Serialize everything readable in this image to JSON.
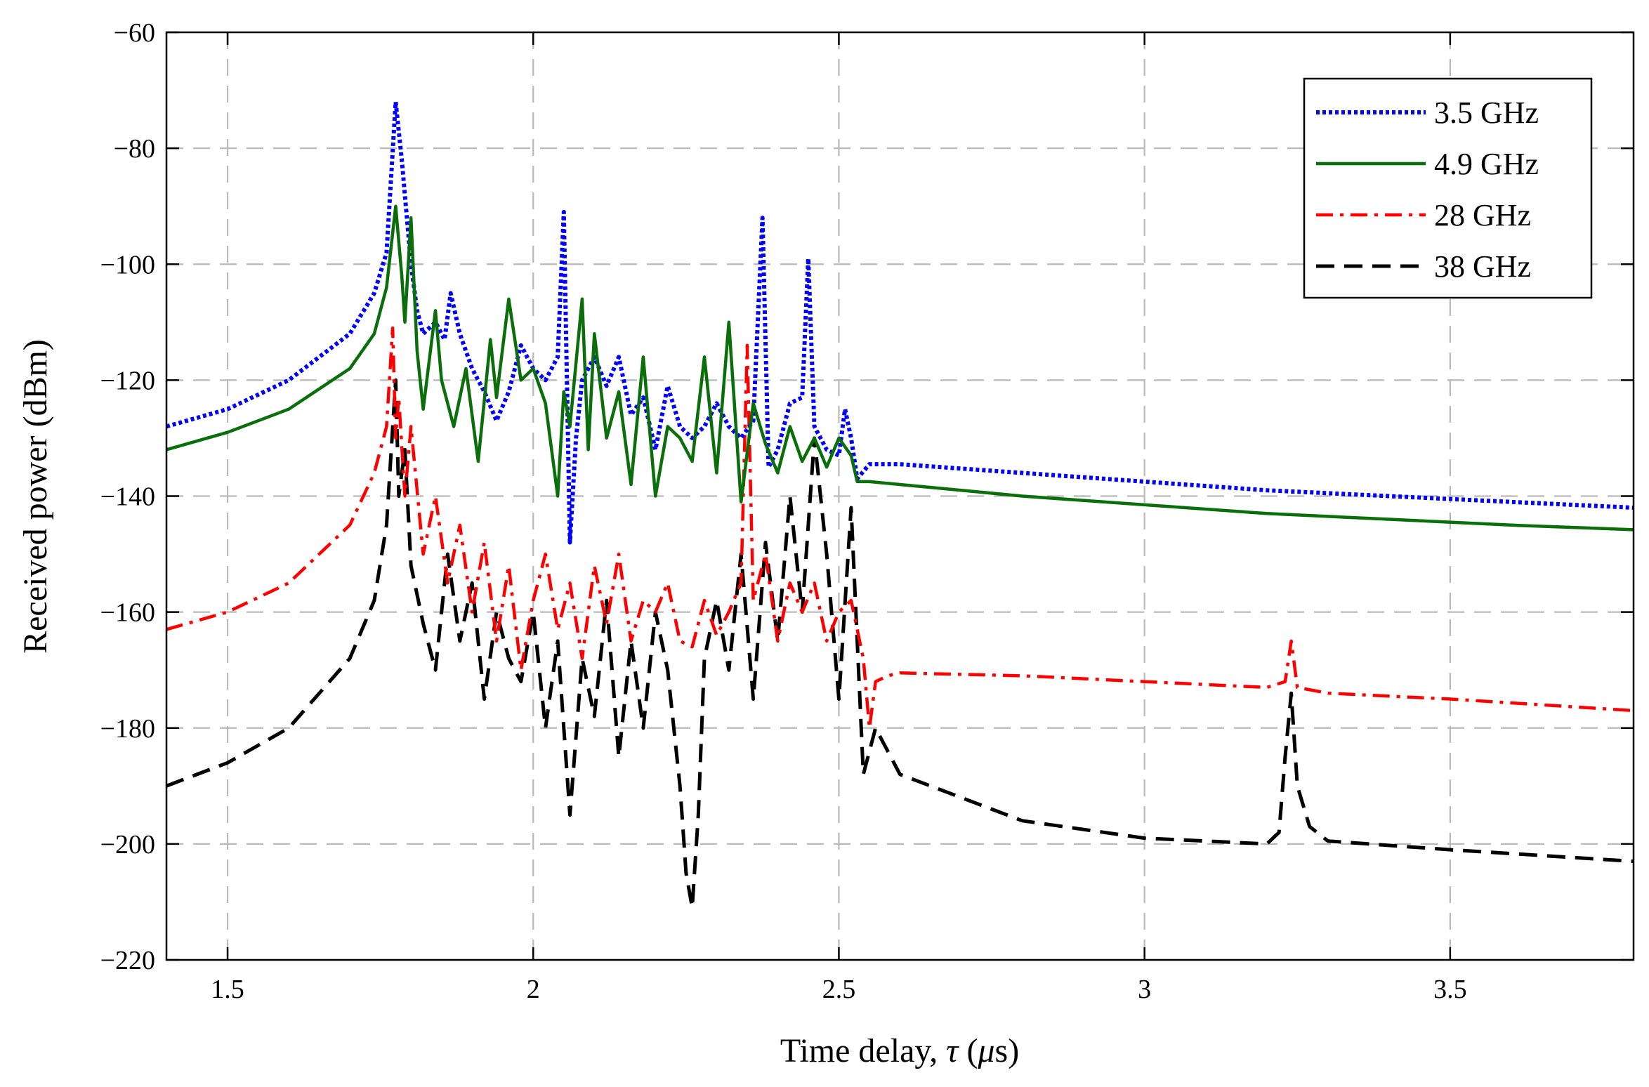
{
  "chart_data": {
    "type": "line",
    "title": "",
    "xlabel": "Time delay, ",
    "xlabel_symbol": "τ",
    "xlabel_unit_open": " (",
    "xlabel_unit_symbol": "μ",
    "xlabel_unit_close": "s)",
    "ylabel": "Received power (dBm)",
    "xlim": [
      1.4,
      3.8
    ],
    "ylim": [
      -220,
      -60
    ],
    "xticks": [
      1.5,
      2,
      2.5,
      3,
      3.5
    ],
    "xtick_labels": [
      "1.5",
      "2",
      "2.5",
      "3",
      "3.5"
    ],
    "yticks": [
      -220,
      -200,
      -180,
      -160,
      -140,
      -120,
      -100,
      -80,
      -60
    ],
    "ytick_labels": [
      "−220",
      "−200",
      "−180",
      "−160",
      "−140",
      "−120",
      "−100",
      "−80",
      "−60"
    ],
    "grid": true,
    "legend_position": "top-right",
    "series": [
      {
        "name": "3.5 GHz",
        "color": "#0000ff",
        "style": "dotted",
        "x": [
          1.4,
          1.5,
          1.6,
          1.7,
          1.74,
          1.76,
          1.775,
          1.785,
          1.8,
          1.81,
          1.82,
          1.84,
          1.855,
          1.865,
          1.88,
          1.9,
          1.92,
          1.94,
          1.96,
          1.98,
          2.0,
          2.02,
          2.04,
          2.05,
          2.06,
          2.07,
          2.08,
          2.1,
          2.12,
          2.14,
          2.16,
          2.18,
          2.2,
          2.22,
          2.24,
          2.26,
          2.28,
          2.3,
          2.32,
          2.34,
          2.36,
          2.375,
          2.385,
          2.4,
          2.42,
          2.44,
          2.45,
          2.46,
          2.48,
          2.5,
          2.51,
          2.52,
          2.53,
          2.55,
          2.6,
          2.8,
          3.0,
          3.2,
          3.4,
          3.6,
          3.8
        ],
        "y": [
          -128,
          -125,
          -120,
          -112,
          -105,
          -98,
          -72,
          -82,
          -100,
          -108,
          -112,
          -110,
          -113,
          -105,
          -112,
          -118,
          -122,
          -127,
          -122,
          -114,
          -118,
          -120,
          -116,
          -91,
          -148,
          -130,
          -120,
          -116,
          -121,
          -116,
          -126,
          -123,
          -132,
          -121,
          -128,
          -130,
          -128,
          -124,
          -128,
          -130,
          -127,
          -92,
          -135,
          -132,
          -124,
          -123,
          -99,
          -128,
          -132,
          -133,
          -125,
          -130,
          -137,
          -134.5,
          -134.5,
          -136,
          -137.5,
          -139,
          -140,
          -141,
          -142
        ]
      },
      {
        "name": "4.9 GHz",
        "color": "#0a6e0a",
        "style": "solid",
        "x": [
          1.4,
          1.5,
          1.6,
          1.7,
          1.74,
          1.76,
          1.775,
          1.785,
          1.79,
          1.8,
          1.81,
          1.82,
          1.84,
          1.85,
          1.87,
          1.89,
          1.91,
          1.93,
          1.94,
          1.96,
          1.97,
          1.98,
          2.0,
          2.02,
          2.04,
          2.05,
          2.06,
          2.08,
          2.09,
          2.1,
          2.12,
          2.14,
          2.16,
          2.18,
          2.2,
          2.22,
          2.24,
          2.26,
          2.28,
          2.3,
          2.32,
          2.34,
          2.36,
          2.38,
          2.4,
          2.42,
          2.44,
          2.46,
          2.48,
          2.5,
          2.52,
          2.53,
          2.55,
          2.6,
          2.8,
          3.0,
          3.2,
          3.4,
          3.6,
          3.8
        ],
        "y": [
          -132,
          -129,
          -125,
          -118,
          -112,
          -104,
          -90,
          -102,
          -110,
          -92,
          -115,
          -125,
          -108,
          -120,
          -128,
          -118,
          -134,
          -113,
          -123,
          -106,
          -113,
          -120,
          -118,
          -124,
          -140,
          -122,
          -128,
          -106,
          -132,
          -112,
          -130,
          -122,
          -138,
          -116,
          -140,
          -128,
          -130,
          -134,
          -116,
          -136,
          -110,
          -141,
          -124,
          -131,
          -136,
          -128,
          -134,
          -130,
          -135,
          -130,
          -133,
          -137.5,
          -137.5,
          -138,
          -140,
          -141.5,
          -143,
          -144,
          -145,
          -145.8
        ]
      },
      {
        "name": "28 GHz",
        "color": "#ff0000",
        "style": "dashdot",
        "x": [
          1.4,
          1.5,
          1.6,
          1.7,
          1.74,
          1.76,
          1.77,
          1.775,
          1.78,
          1.79,
          1.8,
          1.82,
          1.84,
          1.86,
          1.88,
          1.9,
          1.92,
          1.94,
          1.96,
          1.98,
          2.0,
          2.02,
          2.04,
          2.06,
          2.08,
          2.1,
          2.12,
          2.14,
          2.16,
          2.18,
          2.2,
          2.22,
          2.24,
          2.26,
          2.28,
          2.3,
          2.32,
          2.34,
          2.35,
          2.36,
          2.38,
          2.4,
          2.42,
          2.44,
          2.46,
          2.48,
          2.5,
          2.52,
          2.54,
          2.55,
          2.56,
          2.58,
          2.6,
          2.8,
          3.0,
          3.2,
          3.23,
          3.24,
          3.25,
          3.3,
          3.5,
          3.8
        ],
        "y": [
          -163,
          -160,
          -155,
          -145,
          -136,
          -128,
          -111,
          -130,
          -123,
          -140,
          -128,
          -150,
          -140,
          -155,
          -145,
          -160,
          -148,
          -165,
          -152,
          -170,
          -158,
          -150,
          -163,
          -155,
          -168,
          -152,
          -162,
          -150,
          -165,
          -158,
          -160,
          -155,
          -165,
          -166,
          -158,
          -164,
          -160,
          -155,
          -114,
          -158,
          -150,
          -165,
          -155,
          -160,
          -155,
          -165,
          -160,
          -158,
          -168,
          -180,
          -172,
          -171,
          -170.5,
          -171,
          -172,
          -173,
          -172,
          -165,
          -173,
          -174,
          -175,
          -177
        ]
      },
      {
        "name": "38 GHz",
        "color": "#000000",
        "style": "dashed",
        "x": [
          1.4,
          1.5,
          1.6,
          1.7,
          1.74,
          1.76,
          1.775,
          1.78,
          1.79,
          1.8,
          1.82,
          1.84,
          1.86,
          1.88,
          1.9,
          1.92,
          1.94,
          1.96,
          1.98,
          2.0,
          2.02,
          2.04,
          2.06,
          2.08,
          2.1,
          2.12,
          2.14,
          2.16,
          2.18,
          2.2,
          2.22,
          2.24,
          2.25,
          2.26,
          2.27,
          2.28,
          2.3,
          2.32,
          2.34,
          2.36,
          2.38,
          2.4,
          2.42,
          2.44,
          2.46,
          2.48,
          2.5,
          2.52,
          2.54,
          2.56,
          2.6,
          2.8,
          3.0,
          3.2,
          3.22,
          3.23,
          3.24,
          3.25,
          3.27,
          3.3,
          3.5,
          3.8
        ],
        "y": [
          -190,
          -186,
          -180,
          -168,
          -158,
          -145,
          -120,
          -140,
          -132,
          -152,
          -162,
          -170,
          -150,
          -165,
          -155,
          -175,
          -160,
          -168,
          -172,
          -160,
          -180,
          -165,
          -195,
          -168,
          -178,
          -158,
          -185,
          -165,
          -180,
          -160,
          -170,
          -190,
          -205,
          -211,
          -195,
          -168,
          -158,
          -170,
          -150,
          -175,
          -148,
          -165,
          -140,
          -160,
          -130,
          -150,
          -175,
          -142,
          -188,
          -180,
          -188,
          -196,
          -199,
          -200,
          -198,
          -185,
          -174,
          -190,
          -197,
          -199.5,
          -201,
          -203
        ]
      }
    ]
  }
}
